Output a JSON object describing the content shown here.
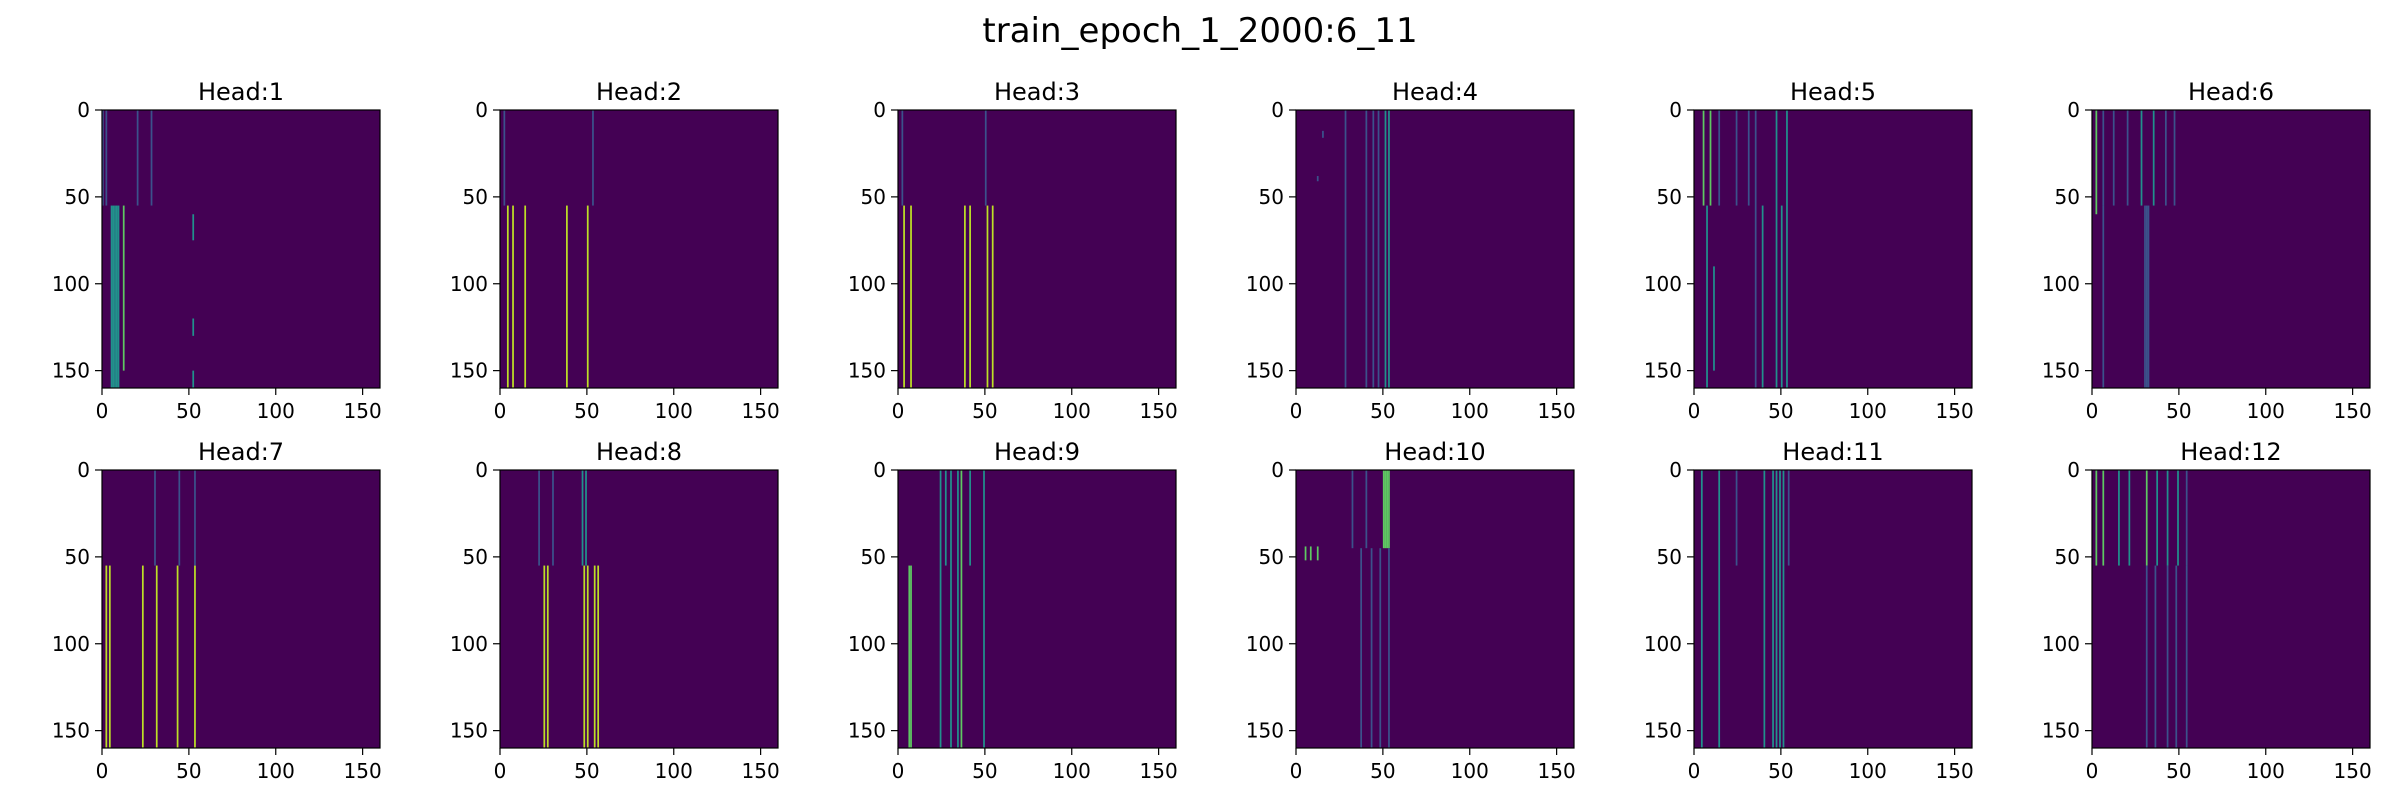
{
  "figure": {
    "title": "train_epoch_1_2000:6_11"
  },
  "colors": {
    "background": "#440154",
    "low": "#3b528b",
    "mid": "#21918c",
    "high": "#5ec962",
    "max": "#bddf26"
  },
  "chart_data": [
    {
      "type": "heatmap",
      "title": "Head:1",
      "xlim": [
        0,
        160
      ],
      "ylim": [
        160,
        0
      ],
      "xticks": [
        0,
        50,
        100,
        150
      ],
      "yticks": [
        0,
        50,
        100,
        150
      ],
      "cmap": "viridis",
      "stripes": [
        {
          "x": 0,
          "y0": 0,
          "y1": 55,
          "v": 0.2
        },
        {
          "x": 2,
          "y0": 0,
          "y1": 55,
          "v": 0.2
        },
        {
          "x": 5,
          "y0": 55,
          "y1": 160,
          "v": 0.55
        },
        {
          "x": 6,
          "y0": 55,
          "y1": 160,
          "v": 0.55
        },
        {
          "x": 7,
          "y0": 55,
          "y1": 160,
          "v": 0.55
        },
        {
          "x": 8,
          "y0": 55,
          "y1": 160,
          "v": 0.55
        },
        {
          "x": 9,
          "y0": 55,
          "y1": 160,
          "v": 0.55
        },
        {
          "x": 12,
          "y0": 55,
          "y1": 150,
          "v": 0.6
        },
        {
          "x": 20,
          "y0": 0,
          "y1": 55,
          "v": 0.2
        },
        {
          "x": 28,
          "y0": 0,
          "y1": 55,
          "v": 0.2
        },
        {
          "x": 52,
          "y0": 60,
          "y1": 75,
          "v": 0.45
        },
        {
          "x": 52,
          "y0": 120,
          "y1": 130,
          "v": 0.45
        },
        {
          "x": 52,
          "y0": 150,
          "y1": 160,
          "v": 0.45
        }
      ]
    },
    {
      "type": "heatmap",
      "title": "Head:2",
      "xlim": [
        0,
        160
      ],
      "ylim": [
        160,
        0
      ],
      "xticks": [
        0,
        50,
        100,
        150
      ],
      "yticks": [
        0,
        50,
        100,
        150
      ],
      "cmap": "viridis",
      "stripes": [
        {
          "x": 2,
          "y0": 0,
          "y1": 55,
          "v": 0.2
        },
        {
          "x": 4,
          "y0": 55,
          "y1": 160,
          "v": 0.9
        },
        {
          "x": 7,
          "y0": 55,
          "y1": 160,
          "v": 0.9
        },
        {
          "x": 14,
          "y0": 55,
          "y1": 160,
          "v": 0.9
        },
        {
          "x": 38,
          "y0": 55,
          "y1": 160,
          "v": 0.9
        },
        {
          "x": 50,
          "y0": 55,
          "y1": 160,
          "v": 0.9
        },
        {
          "x": 53,
          "y0": 0,
          "y1": 55,
          "v": 0.3
        }
      ]
    },
    {
      "type": "heatmap",
      "title": "Head:3",
      "xlim": [
        0,
        160
      ],
      "ylim": [
        160,
        0
      ],
      "xticks": [
        0,
        50,
        100,
        150
      ],
      "yticks": [
        0,
        50,
        100,
        150
      ],
      "cmap": "viridis",
      "stripes": [
        {
          "x": 2,
          "y0": 0,
          "y1": 55,
          "v": 0.2
        },
        {
          "x": 3,
          "y0": 55,
          "y1": 160,
          "v": 0.9
        },
        {
          "x": 7,
          "y0": 55,
          "y1": 160,
          "v": 0.9
        },
        {
          "x": 38,
          "y0": 55,
          "y1": 160,
          "v": 0.9
        },
        {
          "x": 41,
          "y0": 55,
          "y1": 160,
          "v": 0.9
        },
        {
          "x": 51,
          "y0": 55,
          "y1": 160,
          "v": 0.9
        },
        {
          "x": 54,
          "y0": 55,
          "y1": 160,
          "v": 0.9
        },
        {
          "x": 50,
          "y0": 0,
          "y1": 55,
          "v": 0.3
        }
      ]
    },
    {
      "type": "heatmap",
      "title": "Head:4",
      "xlim": [
        0,
        160
      ],
      "ylim": [
        160,
        0
      ],
      "xticks": [
        0,
        50,
        100,
        150
      ],
      "yticks": [
        0,
        50,
        100,
        150
      ],
      "cmap": "viridis",
      "stripes": [
        {
          "x": 28,
          "y0": 0,
          "y1": 160,
          "v": 0.35
        },
        {
          "x": 40,
          "y0": 0,
          "y1": 160,
          "v": 0.35
        },
        {
          "x": 44,
          "y0": 0,
          "y1": 160,
          "v": 0.35
        },
        {
          "x": 47,
          "y0": 0,
          "y1": 160,
          "v": 0.35
        },
        {
          "x": 51,
          "y0": 0,
          "y1": 160,
          "v": 0.45
        },
        {
          "x": 53,
          "y0": 0,
          "y1": 160,
          "v": 0.45
        },
        {
          "x": 15,
          "y0": 12,
          "y1": 16,
          "v": 0.4
        },
        {
          "x": 12,
          "y0": 38,
          "y1": 41,
          "v": 0.4
        }
      ]
    },
    {
      "type": "heatmap",
      "title": "Head:5",
      "xlim": [
        0,
        160
      ],
      "ylim": [
        160,
        0
      ],
      "xticks": [
        0,
        50,
        100,
        150
      ],
      "yticks": [
        0,
        50,
        100,
        150
      ],
      "cmap": "viridis",
      "stripes": [
        {
          "x": 5,
          "y0": 0,
          "y1": 55,
          "v": 0.6
        },
        {
          "x": 9,
          "y0": 0,
          "y1": 55,
          "v": 0.6
        },
        {
          "x": 14,
          "y0": 0,
          "y1": 55,
          "v": 0.4
        },
        {
          "x": 24,
          "y0": 0,
          "y1": 55,
          "v": 0.4
        },
        {
          "x": 31,
          "y0": 0,
          "y1": 55,
          "v": 0.4
        },
        {
          "x": 35,
          "y0": 0,
          "y1": 160,
          "v": 0.4
        },
        {
          "x": 39,
          "y0": 55,
          "y1": 160,
          "v": 0.45
        },
        {
          "x": 47,
          "y0": 0,
          "y1": 160,
          "v": 0.55
        },
        {
          "x": 50,
          "y0": 55,
          "y1": 160,
          "v": 0.55
        },
        {
          "x": 53,
          "y0": 0,
          "y1": 160,
          "v": 0.5
        },
        {
          "x": 7,
          "y0": 55,
          "y1": 160,
          "v": 0.45
        },
        {
          "x": 11,
          "y0": 90,
          "y1": 150,
          "v": 0.45
        }
      ]
    },
    {
      "type": "heatmap",
      "title": "Head:6",
      "xlim": [
        0,
        160
      ],
      "ylim": [
        160,
        0
      ],
      "xticks": [
        0,
        50,
        100,
        150
      ],
      "yticks": [
        0,
        50,
        100,
        150
      ],
      "cmap": "viridis",
      "stripes": [
        {
          "x": 2,
          "y0": 0,
          "y1": 60,
          "v": 0.6
        },
        {
          "x": 6,
          "y0": 0,
          "y1": 55,
          "v": 0.4
        },
        {
          "x": 12,
          "y0": 0,
          "y1": 55,
          "v": 0.4
        },
        {
          "x": 20,
          "y0": 0,
          "y1": 55,
          "v": 0.4
        },
        {
          "x": 28,
          "y0": 0,
          "y1": 55,
          "v": 0.55
        },
        {
          "x": 30,
          "y0": 55,
          "y1": 160,
          "v": 0.25
        },
        {
          "x": 31,
          "y0": 55,
          "y1": 160,
          "v": 0.25
        },
        {
          "x": 32,
          "y0": 55,
          "y1": 160,
          "v": 0.25
        },
        {
          "x": 35,
          "y0": 0,
          "y1": 55,
          "v": 0.55
        },
        {
          "x": 42,
          "y0": 0,
          "y1": 55,
          "v": 0.4
        },
        {
          "x": 47,
          "y0": 0,
          "y1": 55,
          "v": 0.4
        },
        {
          "x": 6,
          "y0": 55,
          "y1": 160,
          "v": 0.3
        }
      ]
    },
    {
      "type": "heatmap",
      "title": "Head:7",
      "xlim": [
        0,
        160
      ],
      "ylim": [
        160,
        0
      ],
      "xticks": [
        0,
        50,
        100,
        150
      ],
      "yticks": [
        0,
        50,
        100,
        150
      ],
      "cmap": "viridis",
      "stripes": [
        {
          "x": 2,
          "y0": 55,
          "y1": 160,
          "v": 0.9
        },
        {
          "x": 4,
          "y0": 55,
          "y1": 160,
          "v": 0.9
        },
        {
          "x": 23,
          "y0": 55,
          "y1": 160,
          "v": 0.9
        },
        {
          "x": 31,
          "y0": 55,
          "y1": 160,
          "v": 0.85
        },
        {
          "x": 43,
          "y0": 55,
          "y1": 160,
          "v": 0.85
        },
        {
          "x": 53,
          "y0": 55,
          "y1": 160,
          "v": 0.85
        },
        {
          "x": 30,
          "y0": 0,
          "y1": 55,
          "v": 0.2
        },
        {
          "x": 44,
          "y0": 0,
          "y1": 55,
          "v": 0.2
        },
        {
          "x": 53,
          "y0": 0,
          "y1": 55,
          "v": 0.2
        }
      ]
    },
    {
      "type": "heatmap",
      "title": "Head:8",
      "xlim": [
        0,
        160
      ],
      "ylim": [
        160,
        0
      ],
      "xticks": [
        0,
        50,
        100,
        150
      ],
      "yticks": [
        0,
        50,
        100,
        150
      ],
      "cmap": "viridis",
      "stripes": [
        {
          "x": 25,
          "y0": 55,
          "y1": 160,
          "v": 0.9
        },
        {
          "x": 27,
          "y0": 55,
          "y1": 160,
          "v": 0.9
        },
        {
          "x": 48,
          "y0": 55,
          "y1": 160,
          "v": 0.95
        },
        {
          "x": 50,
          "y0": 55,
          "y1": 160,
          "v": 0.95
        },
        {
          "x": 54,
          "y0": 55,
          "y1": 160,
          "v": 0.95
        },
        {
          "x": 56,
          "y0": 55,
          "y1": 160,
          "v": 0.95
        },
        {
          "x": 47,
          "y0": 0,
          "y1": 55,
          "v": 0.5
        },
        {
          "x": 49,
          "y0": 0,
          "y1": 55,
          "v": 0.5
        },
        {
          "x": 22,
          "y0": 0,
          "y1": 55,
          "v": 0.3
        },
        {
          "x": 30,
          "y0": 0,
          "y1": 55,
          "v": 0.3
        }
      ]
    },
    {
      "type": "heatmap",
      "title": "Head:9",
      "xlim": [
        0,
        160
      ],
      "ylim": [
        160,
        0
      ],
      "xticks": [
        0,
        50,
        100,
        150
      ],
      "yticks": [
        0,
        50,
        100,
        150
      ],
      "cmap": "viridis",
      "stripes": [
        {
          "x": 6,
          "y0": 55,
          "y1": 160,
          "v": 0.6
        },
        {
          "x": 7,
          "y0": 55,
          "y1": 160,
          "v": 0.6
        },
        {
          "x": 24,
          "y0": 0,
          "y1": 160,
          "v": 0.55
        },
        {
          "x": 30,
          "y0": 0,
          "y1": 160,
          "v": 0.5
        },
        {
          "x": 34,
          "y0": 0,
          "y1": 160,
          "v": 0.5
        },
        {
          "x": 36,
          "y0": 0,
          "y1": 160,
          "v": 0.6
        },
        {
          "x": 41,
          "y0": 0,
          "y1": 55,
          "v": 0.5
        },
        {
          "x": 49,
          "y0": 0,
          "y1": 160,
          "v": 0.55
        },
        {
          "x": 27,
          "y0": 0,
          "y1": 55,
          "v": 0.5
        }
      ]
    },
    {
      "type": "heatmap",
      "title": "Head:10",
      "xlim": [
        0,
        160
      ],
      "ylim": [
        160,
        0
      ],
      "xticks": [
        0,
        50,
        100,
        150
      ],
      "yticks": [
        0,
        50,
        100,
        150
      ],
      "cmap": "viridis",
      "stripes": [
        {
          "x": 50,
          "y0": 0,
          "y1": 45,
          "v": 0.65
        },
        {
          "x": 51,
          "y0": 0,
          "y1": 45,
          "v": 0.65
        },
        {
          "x": 52,
          "y0": 0,
          "y1": 45,
          "v": 0.65
        },
        {
          "x": 53,
          "y0": 0,
          "y1": 45,
          "v": 0.65
        },
        {
          "x": 48,
          "y0": 45,
          "y1": 160,
          "v": 0.3
        },
        {
          "x": 53,
          "y0": 45,
          "y1": 160,
          "v": 0.3
        },
        {
          "x": 37,
          "y0": 45,
          "y1": 160,
          "v": 0.3
        },
        {
          "x": 43,
          "y0": 45,
          "y1": 160,
          "v": 0.3
        },
        {
          "x": 32,
          "y0": 0,
          "y1": 45,
          "v": 0.4
        },
        {
          "x": 40,
          "y0": 0,
          "y1": 45,
          "v": 0.4
        },
        {
          "x": 5,
          "y0": 44,
          "y1": 52,
          "v": 0.6
        },
        {
          "x": 8,
          "y0": 44,
          "y1": 52,
          "v": 0.6
        },
        {
          "x": 12,
          "y0": 44,
          "y1": 52,
          "v": 0.6
        }
      ]
    },
    {
      "type": "heatmap",
      "title": "Head:11",
      "xlim": [
        0,
        160
      ],
      "ylim": [
        160,
        0
      ],
      "xticks": [
        0,
        50,
        100,
        150
      ],
      "yticks": [
        0,
        50,
        100,
        150
      ],
      "cmap": "viridis",
      "stripes": [
        {
          "x": 4,
          "y0": 0,
          "y1": 160,
          "v": 0.45
        },
        {
          "x": 14,
          "y0": 0,
          "y1": 160,
          "v": 0.45
        },
        {
          "x": 40,
          "y0": 0,
          "y1": 160,
          "v": 0.45
        },
        {
          "x": 45,
          "y0": 0,
          "y1": 160,
          "v": 0.55
        },
        {
          "x": 47,
          "y0": 0,
          "y1": 160,
          "v": 0.55
        },
        {
          "x": 49,
          "y0": 0,
          "y1": 160,
          "v": 0.55
        },
        {
          "x": 51,
          "y0": 0,
          "y1": 160,
          "v": 0.5
        },
        {
          "x": 54,
          "y0": 0,
          "y1": 55,
          "v": 0.4
        },
        {
          "x": 24,
          "y0": 0,
          "y1": 55,
          "v": 0.3
        }
      ]
    },
    {
      "type": "heatmap",
      "title": "Head:12",
      "xlim": [
        0,
        160
      ],
      "ylim": [
        160,
        0
      ],
      "xticks": [
        0,
        50,
        100,
        150
      ],
      "yticks": [
        0,
        50,
        100,
        150
      ],
      "cmap": "viridis",
      "stripes": [
        {
          "x": 2,
          "y0": 0,
          "y1": 55,
          "v": 0.6
        },
        {
          "x": 6,
          "y0": 0,
          "y1": 55,
          "v": 0.6
        },
        {
          "x": 15,
          "y0": 0,
          "y1": 55,
          "v": 0.5
        },
        {
          "x": 21,
          "y0": 0,
          "y1": 55,
          "v": 0.5
        },
        {
          "x": 31,
          "y0": 0,
          "y1": 55,
          "v": 0.6
        },
        {
          "x": 37,
          "y0": 0,
          "y1": 55,
          "v": 0.5
        },
        {
          "x": 43,
          "y0": 0,
          "y1": 55,
          "v": 0.5
        },
        {
          "x": 49,
          "y0": 0,
          "y1": 55,
          "v": 0.5
        },
        {
          "x": 54,
          "y0": 0,
          "y1": 55,
          "v": 0.4
        },
        {
          "x": 31,
          "y0": 55,
          "y1": 160,
          "v": 0.2
        },
        {
          "x": 36,
          "y0": 55,
          "y1": 160,
          "v": 0.2
        },
        {
          "x": 43,
          "y0": 55,
          "y1": 160,
          "v": 0.2
        },
        {
          "x": 48,
          "y0": 55,
          "y1": 160,
          "v": 0.2
        },
        {
          "x": 54,
          "y0": 55,
          "y1": 160,
          "v": 0.2
        }
      ]
    }
  ]
}
